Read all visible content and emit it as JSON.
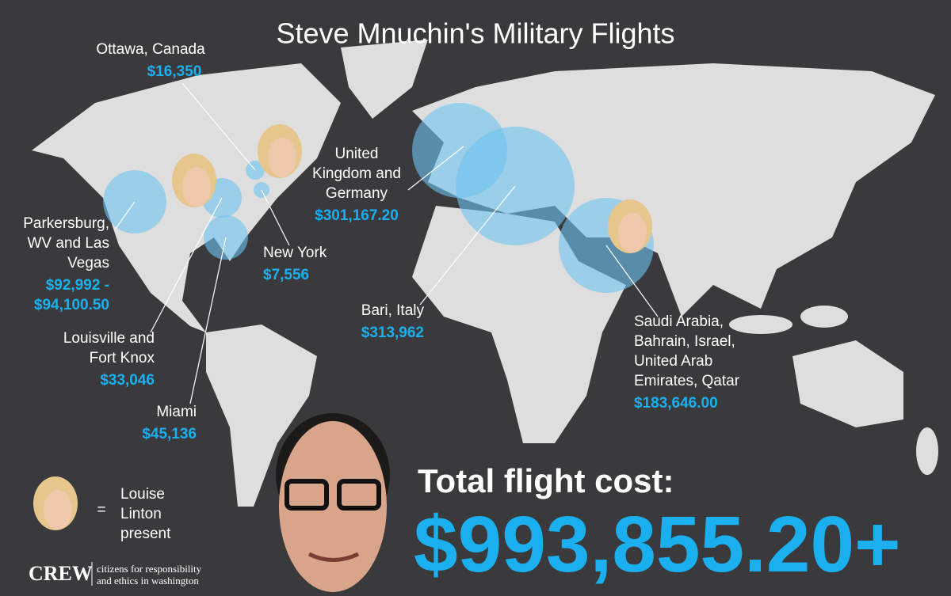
{
  "title": "Steve Mnuchin's Military Flights",
  "locations": [
    {
      "label_lines": [
        "Ottawa, Canada"
      ],
      "cost_lines": [
        "$16,350"
      ]
    },
    {
      "label_lines": [
        "Parkersburg,",
        "WV and Las",
        "Vegas"
      ],
      "cost_lines": [
        "$92,992 -",
        "$94,100.50"
      ]
    },
    {
      "label_lines": [
        "Louisville and",
        "Fort Knox"
      ],
      "cost_lines": [
        "$33,046"
      ]
    },
    {
      "label_lines": [
        "Miami"
      ],
      "cost_lines": [
        "$45,136"
      ]
    },
    {
      "label_lines": [
        "New York"
      ],
      "cost_lines": [
        "$7,556"
      ]
    },
    {
      "label_lines": [
        "United",
        "Kingdom and",
        "Germany"
      ],
      "cost_lines": [
        "$301,167.20"
      ]
    },
    {
      "label_lines": [
        "Bari, Italy"
      ],
      "cost_lines": [
        "$313,962"
      ]
    },
    {
      "label_lines": [
        "Saudi Arabia,",
        "Bahrain, Israel,",
        "United Arab",
        "Emirates, Qatar"
      ],
      "cost_lines": [
        "$183,646.00"
      ]
    }
  ],
  "legend": {
    "symbol": "=",
    "lines": [
      "Louise",
      "Linton",
      "present"
    ]
  },
  "total": {
    "label": "Total flight cost:",
    "value": "$993,855.20+"
  },
  "logo": {
    "name": "CREW",
    "lines": [
      "citizens for responsibility",
      "and ethics in washington"
    ]
  }
}
